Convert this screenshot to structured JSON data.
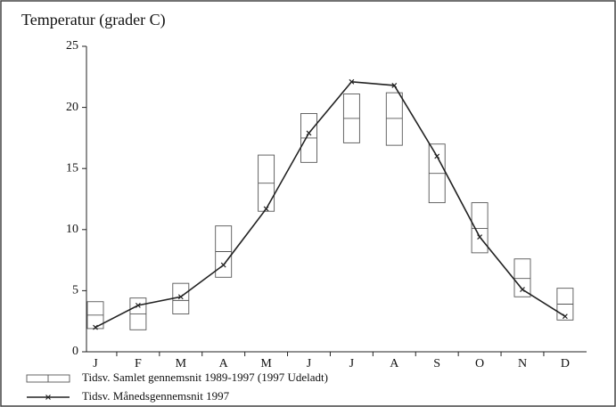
{
  "chart_data": {
    "type": "range-line",
    "title": "Temperatur (grader C)",
    "categories": [
      "J",
      "F",
      "M",
      "A",
      "M",
      "J",
      "J",
      "A",
      "S",
      "O",
      "N",
      "D"
    ],
    "ylim": [
      0,
      25
    ],
    "yticks": [
      0,
      5,
      10,
      15,
      20,
      25
    ],
    "grid": false,
    "series": [
      {
        "name": "Tidsv. Samlet gennemsnit  1989-1997 (1997 Udeladt)",
        "type": "range",
        "color": "#555",
        "low": [
          1.9,
          1.8,
          3.1,
          6.1,
          11.5,
          15.5,
          17.1,
          16.9,
          12.2,
          8.1,
          4.5,
          2.6
        ],
        "mean": [
          3.0,
          3.1,
          4.2,
          8.2,
          13.8,
          17.5,
          19.1,
          19.1,
          14.6,
          10.1,
          6.0,
          3.9
        ],
        "high": [
          4.1,
          4.4,
          5.6,
          10.3,
          16.1,
          19.5,
          21.1,
          21.2,
          17.0,
          12.2,
          7.6,
          5.2
        ]
      },
      {
        "name": "Tidsv. Månedsgennemsnit  1997",
        "type": "line",
        "color": "#222",
        "values": [
          2.0,
          3.8,
          4.5,
          7.1,
          11.7,
          17.9,
          22.1,
          21.8,
          16.0,
          9.4,
          5.1,
          2.9
        ]
      }
    ]
  }
}
